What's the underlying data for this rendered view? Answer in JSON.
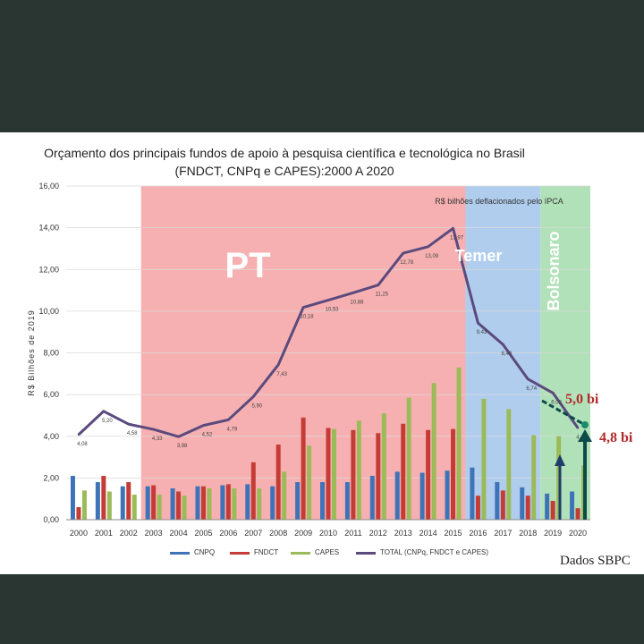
{
  "chart_data": {
    "type": "bar",
    "title_line1": "Orçamento dos principais fundos de apoio à pesquisa científica e tecnológica no Brasil",
    "title_line2": "(FNDCT, CNPq e CAPES):2000 A 2020",
    "subtitle": "R$ bilhões deflacionados pelo IPCA",
    "ylabel": "R$ Bilhões de 2019",
    "ylim": [
      0,
      16
    ],
    "yticks": [
      "0,00",
      "2,00",
      "4,00",
      "6,00",
      "8,00",
      "10,00",
      "12,00",
      "14,00",
      "16,00"
    ],
    "categories": [
      "2000",
      "2001",
      "2002",
      "2003",
      "2004",
      "2005",
      "2006",
      "2007",
      "2008",
      "2009",
      "2010",
      "2011",
      "2012",
      "2013",
      "2014",
      "2015",
      "2016",
      "2017",
      "2018",
      "2019",
      "2020"
    ],
    "series": [
      {
        "name": "CNPQ",
        "color": "#3e73b8",
        "values": [
          2.1,
          1.8,
          1.6,
          1.6,
          1.5,
          1.6,
          1.65,
          1.7,
          1.6,
          1.8,
          1.8,
          1.8,
          2.1,
          2.3,
          2.25,
          2.35,
          2.5,
          1.8,
          1.55,
          1.25,
          1.35
        ]
      },
      {
        "name": "FNDCT",
        "color": "#c43c35",
        "values": [
          0.6,
          2.1,
          1.8,
          1.65,
          1.35,
          1.6,
          1.7,
          2.75,
          3.6,
          4.9,
          4.4,
          4.3,
          4.15,
          4.6,
          4.3,
          4.35,
          1.15,
          1.4,
          1.15,
          0.9,
          0.55
        ]
      },
      {
        "name": "CAPES",
        "color": "#9bbb59",
        "values": [
          1.4,
          1.35,
          1.2,
          1.2,
          1.15,
          1.5,
          1.5,
          1.5,
          2.3,
          3.55,
          4.35,
          4.75,
          5.1,
          5.85,
          6.55,
          7.3,
          5.8,
          5.3,
          4.05,
          4.0,
          2.6
        ]
      },
      {
        "name": "TOTAL (CNPq, FNDCT e CAPES)",
        "color": "#5b4a7d",
        "values": [
          4.08,
          5.2,
          4.58,
          4.33,
          3.98,
          4.52,
          4.79,
          5.9,
          7.43,
          10.18,
          10.53,
          10.88,
          11.25,
          12.78,
          13.09,
          13.97,
          9.43,
          8.4,
          6.74,
          6.08,
          4.4
        ]
      }
    ],
    "total_labels": [
      "4,08",
      "5,20",
      "4,58",
      "4,33",
      "3,98",
      "4,52",
      "4,79",
      "5,90",
      "7,43",
      "10,18",
      "10,53",
      "10,88",
      "11,25",
      "12,78",
      "13,09",
      "13,97",
      "9,43",
      "8,40",
      "6,74",
      "6,08",
      "4,40"
    ],
    "periods": [
      {
        "label": "PT",
        "start": "2003",
        "end": "2015",
        "color": "#f6a7a9"
      },
      {
        "label": "Temer",
        "start": "2016",
        "end": "2018",
        "color": "#a7c8ec"
      },
      {
        "label": "Bolsonaro",
        "start": "2019",
        "end": "2020",
        "color": "#a9deb0"
      }
    ],
    "annotations": {
      "upper": "5,0 bi",
      "lower": "4,8 bi",
      "source": "Dados SBPC"
    },
    "legend_position": "bottom"
  }
}
